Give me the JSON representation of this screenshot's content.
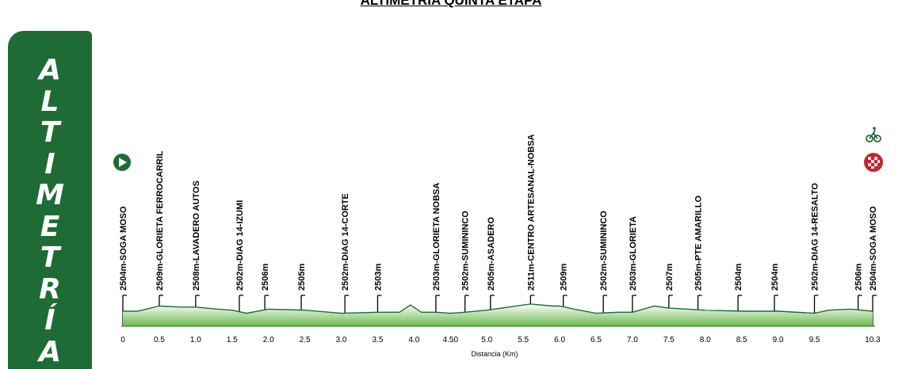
{
  "page": {
    "title": "ALTIMETRIA QUINTA ETAPA",
    "side_text": "ALTIMETRÍA"
  },
  "colors": {
    "panel": "#1f6b35",
    "profile_fill_top": "#ffffff",
    "profile_fill_bottom": "#6bb84a",
    "profile_line": "#1d6b3a",
    "marker": "#000000",
    "start_icon": "#1f6b35",
    "finish_icon": "#c0272d"
  },
  "icons": {
    "start": "play-circle-icon",
    "finish": "cyclist-finish-icon"
  },
  "chart_data": {
    "type": "area",
    "title": "ALTIMETRIA QUINTA ETAPA",
    "xlabel": "Distancia (Km)",
    "ylabel": "",
    "x_ticks": [
      "0",
      "0.5",
      "1.0",
      "1.5",
      "2.0",
      "2.5",
      "3.0",
      "3.5",
      "4.0",
      "4.50",
      "5.0",
      "5.5",
      "6.0",
      "6.5",
      "7.0",
      "7.5",
      "8.0",
      "8.5",
      "9.0",
      "9.5",
      "10.3"
    ],
    "xlim": [
      0,
      10.3
    ],
    "grid": false,
    "profile": [
      [
        0,
        2504
      ],
      [
        0.2,
        2504
      ],
      [
        0.5,
        2509
      ],
      [
        0.8,
        2508
      ],
      [
        1.0,
        2508
      ],
      [
        1.3,
        2506
      ],
      [
        1.5,
        2505
      ],
      [
        1.7,
        2502
      ],
      [
        2.0,
        2506
      ],
      [
        2.5,
        2505
      ],
      [
        3.0,
        2502
      ],
      [
        3.5,
        2503
      ],
      [
        3.8,
        2503
      ],
      [
        3.95,
        2510
      ],
      [
        4.1,
        2503
      ],
      [
        4.3,
        2503
      ],
      [
        4.5,
        2502
      ],
      [
        4.7,
        2503
      ],
      [
        5.0,
        2505
      ],
      [
        5.3,
        2508
      ],
      [
        5.6,
        2511
      ],
      [
        5.9,
        2509
      ],
      [
        6.0,
        2509
      ],
      [
        6.2,
        2506
      ],
      [
        6.5,
        2502
      ],
      [
        6.8,
        2503
      ],
      [
        7.0,
        2503
      ],
      [
        7.3,
        2509
      ],
      [
        7.5,
        2507
      ],
      [
        8.0,
        2505
      ],
      [
        8.5,
        2504
      ],
      [
        9.0,
        2504
      ],
      [
        9.5,
        2502
      ],
      [
        9.7,
        2505
      ],
      [
        10.0,
        2506
      ],
      [
        10.3,
        2504
      ]
    ],
    "markers": [
      {
        "km": 0,
        "label": "2504m-SOGA MOSO"
      },
      {
        "km": 0.5,
        "label": "2509m-GLORIETA FERROCARRIL"
      },
      {
        "km": 1.0,
        "label": "2508m-LAVADERO AUTOS"
      },
      {
        "km": 1.6,
        "label": "2502m-DIAG 14-IZUMI"
      },
      {
        "km": 1.95,
        "label": "2506m"
      },
      {
        "km": 2.45,
        "label": "2505m"
      },
      {
        "km": 3.05,
        "label": "2502m-DIAG 14-CORTE"
      },
      {
        "km": 3.5,
        "label": "2503m"
      },
      {
        "km": 4.3,
        "label": "2503m-GLORIETA NOBSA"
      },
      {
        "km": 4.7,
        "label": "2502m-SUMININCO"
      },
      {
        "km": 5.05,
        "label": "2505m-ASADERO"
      },
      {
        "km": 5.6,
        "label": "2511m-CENTRO ARTESANAL-NOBSA"
      },
      {
        "km": 6.05,
        "label": "2509m"
      },
      {
        "km": 6.6,
        "label": "2502m-SUMININCO"
      },
      {
        "km": 7.0,
        "label": "2503m-GLORIETA"
      },
      {
        "km": 7.5,
        "label": "2507m"
      },
      {
        "km": 7.9,
        "label": "2505m-PTE AMARILLO"
      },
      {
        "km": 8.45,
        "label": "2504m"
      },
      {
        "km": 8.95,
        "label": "2504m"
      },
      {
        "km": 9.5,
        "label": "2502m-DIAG 14-RESALTO"
      },
      {
        "km": 10.1,
        "label": "2506m"
      },
      {
        "km": 10.3,
        "label": "2504m-SOGA MOSO"
      }
    ]
  }
}
